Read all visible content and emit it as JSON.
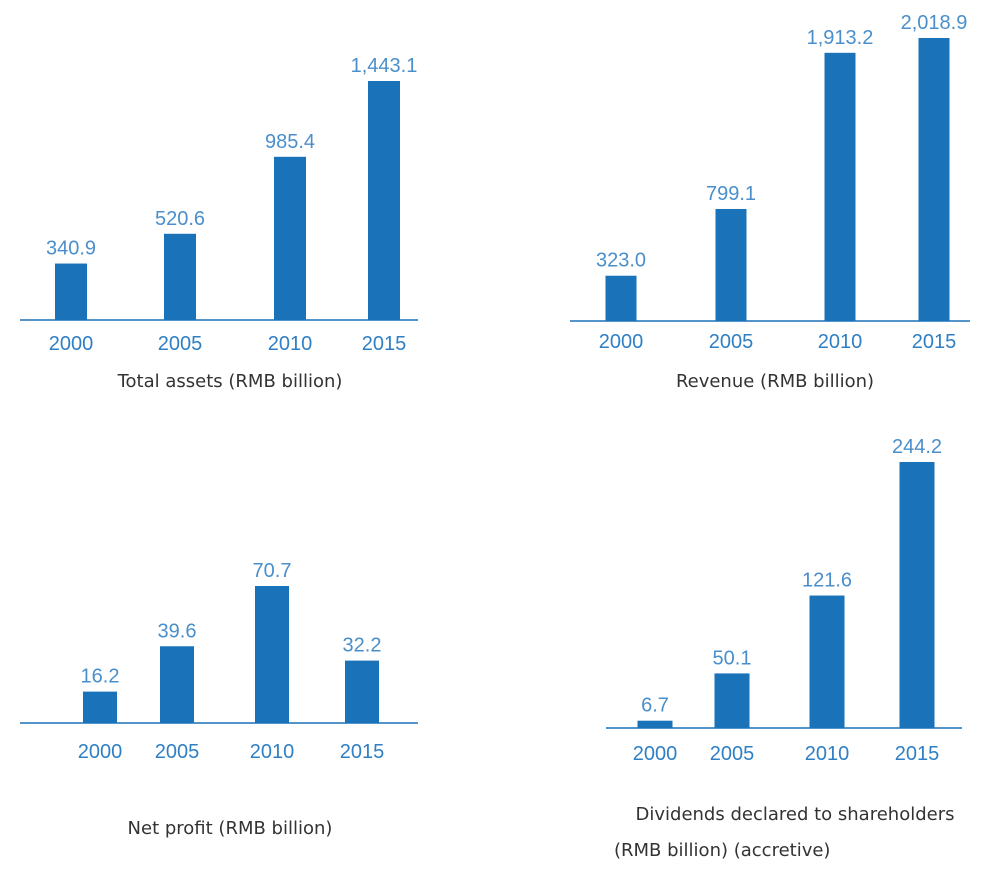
{
  "colors": {
    "bar": "#1a72b9",
    "value_label": "#4a8fcb",
    "tick_label": "#2f7fc4",
    "caption": "#333333"
  },
  "chart_data": [
    {
      "type": "bar",
      "title": "Total assets (RMB billion)",
      "categories": [
        "2000",
        "2005",
        "2010",
        "2015"
      ],
      "values": [
        340.9,
        520.6,
        985.4,
        1443.1
      ],
      "value_labels": [
        "340.9",
        "520.6",
        "985.4",
        "1,443.1"
      ]
    },
    {
      "type": "bar",
      "title": "Revenue (RMB billion)",
      "categories": [
        "2000",
        "2005",
        "2010",
        "2015"
      ],
      "values": [
        323.0,
        799.1,
        1913.2,
        2018.9
      ],
      "value_labels": [
        "323.0",
        "799.1",
        "1,913.2",
        "2,018.9"
      ]
    },
    {
      "type": "bar",
      "title": "Net profit (RMB billion)",
      "categories": [
        "2000",
        "2005",
        "2010",
        "2015"
      ],
      "values": [
        16.2,
        39.6,
        70.7,
        32.2
      ],
      "value_labels": [
        "16.2",
        "39.6",
        "70.7",
        "32.2"
      ]
    },
    {
      "type": "bar",
      "title": "Dividends declared to shareholders (RMB billion) (accretive)",
      "title_lines": [
        "Dividends declared to shareholders",
        "(RMB billion) (accretive)"
      ],
      "categories": [
        "2000",
        "2005",
        "2010",
        "2015"
      ],
      "values": [
        6.7,
        50.1,
        121.6,
        244.2
      ],
      "value_labels": [
        "6.7",
        "50.1",
        "121.6",
        "244.2"
      ]
    }
  ]
}
